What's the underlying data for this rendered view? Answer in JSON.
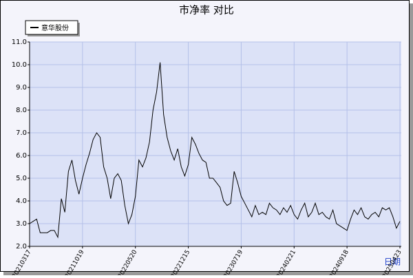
{
  "chart_data": {
    "type": "line",
    "title": "市净率  对比",
    "x_label": "日期",
    "categories": [
      "20210317",
      null,
      null,
      null,
      null,
      null,
      null,
      null,
      null,
      null,
      null,
      null,
      null,
      null,
      null,
      "20211019",
      null,
      null,
      null,
      null,
      null,
      null,
      null,
      null,
      null,
      null,
      null,
      null,
      null,
      null,
      "20220520",
      null,
      null,
      null,
      null,
      null,
      null,
      null,
      null,
      null,
      null,
      null,
      null,
      null,
      null,
      "20221215",
      null,
      null,
      null,
      null,
      null,
      null,
      null,
      null,
      null,
      null,
      null,
      null,
      null,
      null,
      "20230719",
      null,
      null,
      null,
      null,
      null,
      null,
      null,
      null,
      null,
      null,
      null,
      null,
      null,
      null,
      "20240221",
      null,
      null,
      null,
      null,
      null,
      null,
      null,
      null,
      null,
      null,
      null,
      null,
      null,
      null,
      "20240918",
      null,
      null,
      null,
      null,
      null,
      null,
      null,
      null,
      null,
      null,
      null,
      null,
      null,
      null,
      "20250423"
    ],
    "series": [
      {
        "name": "意华股份",
        "color": "#000000",
        "values": [
          3.0,
          3.1,
          3.2,
          2.6,
          2.6,
          2.6,
          2.7,
          2.7,
          2.4,
          4.1,
          3.5,
          5.3,
          5.8,
          4.9,
          4.3,
          5.0,
          5.6,
          6.1,
          6.7,
          7.0,
          6.8,
          5.5,
          5.0,
          4.1,
          5.0,
          5.2,
          4.9,
          3.8,
          3.0,
          3.4,
          4.2,
          5.8,
          5.5,
          5.9,
          6.6,
          8.0,
          8.8,
          10.1,
          7.8,
          6.8,
          6.2,
          5.8,
          6.3,
          5.5,
          5.1,
          5.6,
          6.8,
          6.5,
          6.1,
          5.8,
          5.7,
          5.0,
          5.0,
          4.8,
          4.6,
          4.0,
          3.8,
          3.9,
          5.3,
          4.8,
          4.2,
          3.9,
          3.6,
          3.3,
          3.8,
          3.4,
          3.5,
          3.4,
          3.9,
          3.7,
          3.6,
          3.4,
          3.7,
          3.5,
          3.8,
          3.4,
          3.2,
          3.6,
          3.9,
          3.3,
          3.5,
          3.9,
          3.4,
          3.5,
          3.3,
          3.2,
          3.6,
          3.0,
          2.9,
          2.8,
          2.7,
          3.2,
          3.6,
          3.4,
          3.7,
          3.3,
          3.2,
          3.4,
          3.5,
          3.3,
          3.7,
          3.6,
          3.7,
          3.3,
          2.8,
          3.1
        ]
      }
    ],
    "ylim": [
      2,
      11
    ],
    "yticks": [
      {
        "value": 2,
        "label": "2.0"
      },
      {
        "value": 3,
        "label": "3.0"
      },
      {
        "value": 4,
        "label": "4.0"
      },
      {
        "value": 5,
        "label": "5.0"
      },
      {
        "value": 6,
        "label": "6.0"
      },
      {
        "value": 7,
        "label": "7.0"
      },
      {
        "value": 8,
        "label": "8.0"
      },
      {
        "value": 9,
        "label": "9.0"
      },
      {
        "value": 10,
        "label": "10.0"
      },
      {
        "value": 11,
        "label": "11.0"
      }
    ],
    "grid": true
  }
}
